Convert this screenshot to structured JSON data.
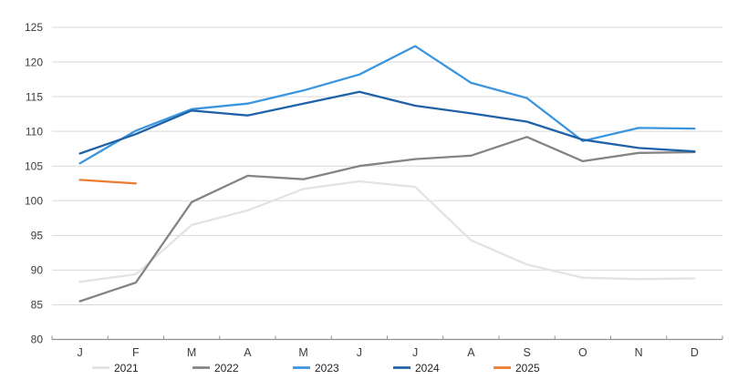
{
  "chart_data": {
    "type": "line",
    "title": "",
    "xlabel": "",
    "ylabel": "",
    "grid": true,
    "background": "#ffffff",
    "gridline_color": "#d9d9d9",
    "axis_line_color": "#8f8f8f",
    "tick_label_color": "#3d3d3d",
    "x_categories": [
      "J",
      "F",
      "M",
      "A",
      "M",
      "J",
      "J",
      "A",
      "S",
      "O",
      "N",
      "D"
    ],
    "y_axis": {
      "min": 80,
      "max": 125,
      "tick_step": 5,
      "tick_labels": [
        "80",
        "85",
        "90",
        "95",
        "100",
        "105",
        "110",
        "115",
        "120",
        "125"
      ]
    },
    "series": [
      {
        "name": "2021",
        "color": "#e3e3e3",
        "values": [
          88.3,
          89.4,
          96.5,
          98.6,
          101.7,
          102.8,
          102.0,
          94.3,
          90.8,
          88.9,
          88.7,
          88.8
        ]
      },
      {
        "name": "2022",
        "color": "#848484",
        "values": [
          85.5,
          88.2,
          99.8,
          103.6,
          103.1,
          105.0,
          106.0,
          106.5,
          109.2,
          105.7,
          106.9,
          107.0
        ]
      },
      {
        "name": "2023",
        "color": "#3b95df",
        "values": [
          105.4,
          110.1,
          113.2,
          114.0,
          115.9,
          118.2,
          122.3,
          117.0,
          114.8,
          108.6,
          110.5,
          110.4
        ]
      },
      {
        "name": "2024",
        "color": "#2062a8",
        "values": [
          106.8,
          109.6,
          113.0,
          112.3,
          114.0,
          115.7,
          113.7,
          112.6,
          111.4,
          108.8,
          107.6,
          107.1
        ]
      },
      {
        "name": "2025",
        "color": "#ed7d31",
        "values": [
          103.0,
          102.5,
          null,
          null,
          null,
          null,
          null,
          null,
          null,
          null,
          null,
          null
        ]
      }
    ],
    "legend": {
      "position": "bottom",
      "entries": [
        "2021",
        "2022",
        "2023",
        "2024",
        "2025"
      ]
    }
  }
}
